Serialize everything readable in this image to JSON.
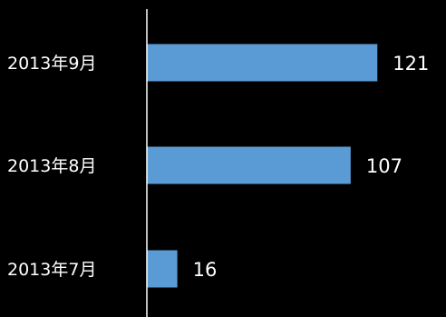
{
  "chart_data": {
    "type": "bar",
    "orientation": "horizontal",
    "categories": [
      "2013年9月",
      "2013年8月",
      "2013年7月"
    ],
    "values": [
      121,
      107,
      16
    ],
    "title": "",
    "xlabel": "",
    "ylabel": "",
    "xlim": [
      0,
      138
    ],
    "grid": false,
    "legend": "none",
    "bar_color": "#5b9bd5",
    "axis_color": "#ffffff",
    "text_color": "#ffffff",
    "background": "#000000"
  }
}
